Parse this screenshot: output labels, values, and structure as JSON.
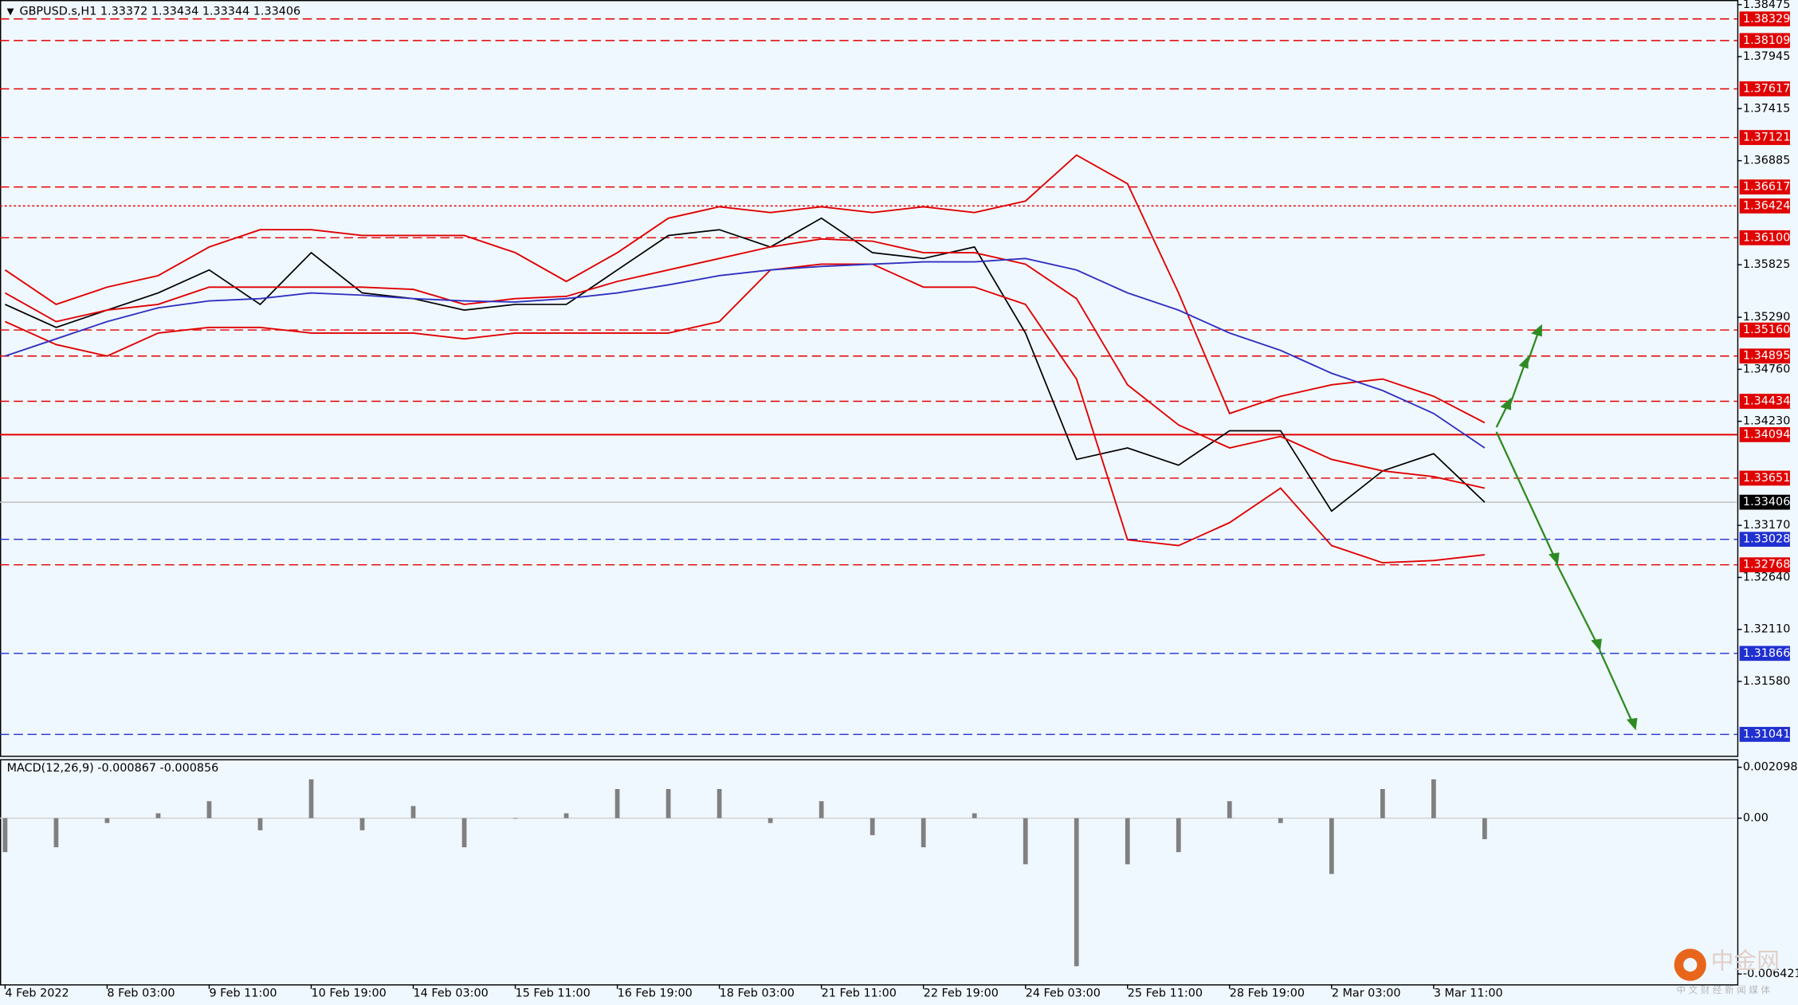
{
  "chart_data": [
    {
      "type": "line",
      "title": "GBPUSD.s,H1  1.33372 1.33434 1.33344 1.33406",
      "x": [
        0,
        10,
        20,
        30,
        40,
        50,
        60,
        70,
        80,
        90,
        100,
        110,
        120,
        130,
        140,
        150,
        160,
        170,
        180,
        190,
        200,
        210,
        220,
        230,
        240,
        250,
        260,
        270,
        280,
        290
      ],
      "xlim": [
        -1,
        339.5
      ],
      "xticks": [
        {
          "value": 0,
          "label": "4 Feb 2022"
        },
        {
          "value": 20,
          "label": "8 Feb 03:00"
        },
        {
          "value": 40,
          "label": "9 Feb 11:00"
        },
        {
          "value": 60,
          "label": "10 Feb 19:00"
        },
        {
          "value": 80,
          "label": "14 Feb 03:00"
        },
        {
          "value": 100,
          "label": "15 Feb 11:00"
        },
        {
          "value": 120,
          "label": "16 Feb 19:00"
        },
        {
          "value": 140,
          "label": "18 Feb 03:00"
        },
        {
          "value": 160,
          "label": "21 Feb 11:00"
        },
        {
          "value": 180,
          "label": "22 Feb 19:00"
        },
        {
          "value": 200,
          "label": "24 Feb 03:00"
        },
        {
          "value": 220,
          "label": "25 Feb 11:00"
        },
        {
          "value": 240,
          "label": "28 Feb 19:00"
        },
        {
          "value": 260,
          "label": "2 Mar 03:00"
        },
        {
          "value": 280,
          "label": "3 Mar 11:00"
        }
      ],
      "ylim": [
        1.30823,
        1.38522
      ],
      "yticks": [
        1.38475,
        1.37945,
        1.37415,
        1.36885,
        1.35825,
        {
          "value": 1.3529,
          "label": "1.35290"
        },
        {
          "value": 1.3476,
          "label": "1.34760"
        },
        {
          "value": 1.3423,
          "label": "1.34230"
        },
        {
          "value": 1.3317,
          "label": "1.33170"
        },
        {
          "value": 1.3264,
          "label": "1.32640"
        },
        {
          "value": 1.3211,
          "label": "1.32110"
        },
        {
          "value": 1.3158,
          "label": "1.31580"
        }
      ],
      "levels": [
        {
          "value": 1.38329,
          "color": "#e00000",
          "style": "dash"
        },
        {
          "value": 1.38109,
          "color": "#e00000",
          "style": "dash"
        },
        {
          "value": 1.37617,
          "color": "#e00000",
          "style": "dash"
        },
        {
          "value": 1.37121,
          "color": "#e00000",
          "style": "dash"
        },
        {
          "value": 1.36617,
          "color": "#e00000",
          "style": "dash"
        },
        {
          "value": 1.36424,
          "color": "#e00000",
          "style": "dot"
        },
        {
          "value": 1.361,
          "label": "1.36100",
          "color": "#e00000",
          "style": "dash"
        },
        {
          "value": 1.3516,
          "label": "1.35160",
          "color": "#e00000",
          "style": "dash"
        },
        {
          "value": 1.34895,
          "color": "#e00000",
          "style": "dash"
        },
        {
          "value": 1.34434,
          "color": "#e00000",
          "style": "dash"
        },
        {
          "value": 1.34094,
          "color": "#e00000",
          "style": "solid"
        },
        {
          "value": 1.33651,
          "color": "#e00000",
          "style": "dash"
        },
        {
          "value": 1.33406,
          "color": "#000000",
          "style": "solid"
        },
        {
          "value": 1.33028,
          "color": "#2030d0",
          "style": "dash"
        },
        {
          "value": 1.32768,
          "color": "#e00000",
          "style": "dash"
        },
        {
          "value": 1.31866,
          "color": "#2030d0",
          "style": "dash"
        },
        {
          "value": 1.31041,
          "color": "#2030d0",
          "style": "dash"
        }
      ],
      "series": [
        {
          "name": "Close",
          "color": "#000000",
          "values": [
            1.35421,
            1.35187,
            1.35363,
            1.35538,
            1.35772,
            1.35421,
            1.35948,
            1.35538,
            1.3548,
            1.35363,
            1.35421,
            1.35421,
            1.35772,
            1.36123,
            1.36182,
            1.36006,
            1.36299,
            1.35948,
            1.35889,
            1.36006,
            1.35129,
            1.33842,
            1.33959,
            1.33783,
            1.34134,
            1.34134,
            1.33315,
            1.33725,
            1.339,
            1.33406
          ]
        },
        {
          "name": "BB Upper",
          "color": "#e00000",
          "values": [
            1.35772,
            1.35421,
            1.35597,
            1.35714,
            1.36006,
            1.36182,
            1.36182,
            1.36123,
            1.36123,
            1.36123,
            1.35948,
            1.35655,
            1.35948,
            1.36299,
            1.36416,
            1.36357,
            1.36416,
            1.36357,
            1.36416,
            1.36357,
            1.36474,
            1.36942,
            1.3665,
            1.35538,
            1.3431,
            1.34485,
            1.34602,
            1.34661,
            1.34485,
            1.34216
          ]
        },
        {
          "name": "BB Middle",
          "color": "#e00000",
          "values": [
            1.35538,
            1.35246,
            1.35363,
            1.35421,
            1.35597,
            1.35597,
            1.35597,
            1.35597,
            1.35574,
            1.35421,
            1.3548,
            1.35503,
            1.35655,
            1.35772,
            1.35889,
            1.36006,
            1.36088,
            1.36065,
            1.35948,
            1.35948,
            1.35831,
            1.3548,
            1.34602,
            1.34193,
            1.33959,
            1.34076,
            1.33842,
            1.33725,
            1.33666,
            1.33549
          ]
        },
        {
          "name": "BB Lower",
          "color": "#e00000",
          "values": [
            1.35246,
            1.35012,
            1.34895,
            1.35129,
            1.35187,
            1.35187,
            1.35129,
            1.35129,
            1.35129,
            1.3507,
            1.35129,
            1.35129,
            1.35129,
            1.35129,
            1.35246,
            1.35772,
            1.35831,
            1.35831,
            1.35597,
            1.35597,
            1.35421,
            1.34661,
            1.33023,
            1.32964,
            1.33198,
            1.33549,
            1.32964,
            1.32789,
            1.32812,
            1.32871
          ]
        },
        {
          "name": "MA",
          "color": "#3030c0",
          "values": [
            1.34895,
            1.3507,
            1.35246,
            1.35386,
            1.35457,
            1.3548,
            1.35538,
            1.35515,
            1.3548,
            1.35457,
            1.35445,
            1.3548,
            1.35538,
            1.3562,
            1.35714,
            1.35772,
            1.35808,
            1.35831,
            1.35854,
            1.35854,
            1.35889,
            1.35772,
            1.35538,
            1.35363,
            1.35129,
            1.34953,
            1.34719,
            1.34544,
            1.3431,
            1.33959
          ]
        }
      ]
    },
    {
      "type": "bar",
      "title": "MACD(12,26,9) -0.000867 -0.000856",
      "x": [
        0,
        10,
        20,
        30,
        40,
        50,
        60,
        70,
        80,
        90,
        100,
        110,
        120,
        130,
        140,
        150,
        160,
        170,
        180,
        190,
        200,
        210,
        220,
        230,
        240,
        250,
        260,
        270,
        280,
        290
      ],
      "xlim": [
        -1,
        339.5
      ],
      "values": [
        -0.0014,
        -0.0012,
        -0.0002,
        0.0002,
        0.0007,
        -0.0005,
        0.0016,
        -0.0005,
        0.0005,
        -0.0012,
        0,
        0.0002,
        0.0012,
        0.0012,
        0.0012,
        -0.0002,
        0.0007,
        -0.0007,
        -0.0012,
        0.0002,
        -0.0019,
        -0.0061,
        -0.0019,
        -0.0014,
        0.0007,
        -0.0002,
        -0.0023,
        0.0012,
        0.0016,
        -0.000867
      ],
      "color": "#808080",
      "ylim": [
        -0.006847,
        0.002429
      ],
      "yticks": [
        0.002098,
        {
          "value": 0,
          "label": "0.00"
        },
        -0.006421
      ]
    }
  ],
  "watermark": {
    "brand": "中金网",
    "tagline": "中 文 财 经 新 闻 媒 体"
  }
}
